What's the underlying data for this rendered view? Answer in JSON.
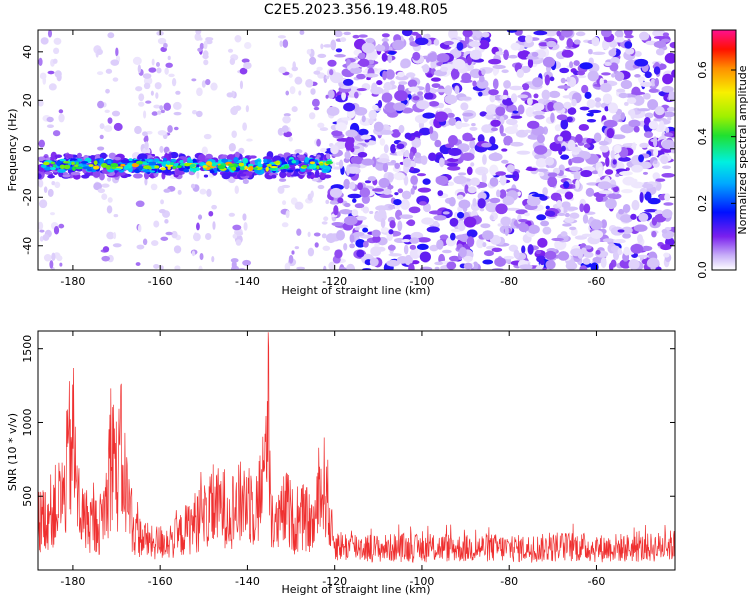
{
  "figure": {
    "title": "C2E5.2023.356.19.48.R05"
  },
  "chart_data": [
    {
      "type": "heatmap",
      "xlabel": "Height of straight line (km)",
      "ylabel": "Frequency (Hz)",
      "xlim": [
        -188,
        -42
      ],
      "ylim": [
        -50,
        49
      ],
      "x_ticks": [
        -180,
        -160,
        -140,
        -120,
        -100,
        -80,
        -60
      ],
      "y_ticks": [
        -40,
        -20,
        0,
        20,
        40
      ],
      "grid": false,
      "colormap": "gist_ncar-like (white → violet → blue → cyan → green → yellow → orange → red → magenta)",
      "features": [
        {
          "description": "horizontal band of high amplitude",
          "x_range": [
            -188,
            -121
          ],
          "frequency_hz": -7,
          "peak_amplitude": 0.6
        },
        {
          "description": "diffuse low amplitude noise",
          "x_range": [
            -121,
            -42
          ],
          "frequency_range": [
            -50,
            49
          ],
          "amplitude_range": [
            0.05,
            0.2
          ]
        }
      ],
      "colorbar": {
        "label": "Normalized spectral amplitude",
        "range": [
          0.0,
          0.72
        ],
        "ticks": [
          "0.0",
          "0.2",
          "0.4",
          "0.6"
        ]
      }
    },
    {
      "type": "line",
      "xlabel": "Height of straight line (km)",
      "ylabel": "SNR (10 * v/v)",
      "xlim": [
        -188,
        -42
      ],
      "ylim": [
        0,
        1620
      ],
      "x_ticks": [
        -180,
        -160,
        -140,
        -120,
        -100,
        -80,
        -60
      ],
      "y_ticks": [
        500,
        1000,
        1500
      ],
      "grid": false,
      "color": "#ef3030",
      "x": [
        -188,
        -186,
        -184,
        -182,
        -181,
        -180,
        -179,
        -178,
        -176,
        -174,
        -172,
        -171,
        -170,
        -169,
        -168,
        -166,
        -164,
        -162,
        -160,
        -158,
        -156,
        -154,
        -152,
        -150,
        -148,
        -146,
        -144,
        -142,
        -140,
        -138,
        -136,
        -135.2,
        -134.5,
        -133,
        -131,
        -129,
        -127,
        -125,
        -123,
        -122,
        -121,
        -120,
        -118,
        -115,
        -110,
        -105,
        -100,
        -95,
        -90,
        -85,
        -80,
        -75,
        -70,
        -65,
        -60,
        -55,
        -50,
        -45,
        -42
      ],
      "y": [
        450,
        500,
        600,
        700,
        1050,
        1250,
        700,
        500,
        450,
        400,
        700,
        1300,
        850,
        1080,
        800,
        350,
        300,
        250,
        260,
        280,
        300,
        380,
        450,
        500,
        550,
        600,
        560,
        600,
        700,
        550,
        900,
        1640,
        400,
        420,
        600,
        400,
        500,
        400,
        700,
        820,
        400,
        250,
        220,
        220,
        200,
        210,
        200,
        210,
        200,
        210,
        200,
        200,
        210,
        220,
        200,
        210,
        200,
        220,
        230
      ]
    }
  ]
}
